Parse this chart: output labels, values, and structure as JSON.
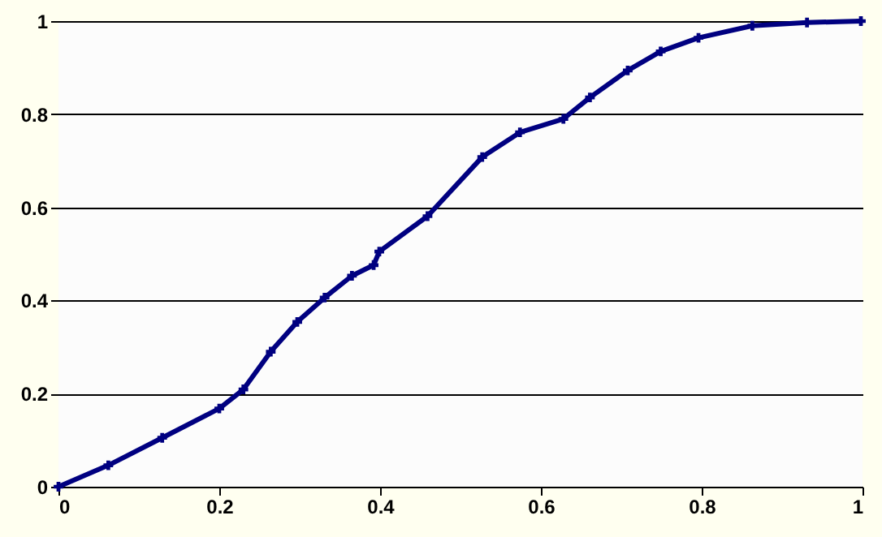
{
  "chart_data": {
    "type": "line",
    "marker": "cross",
    "line_style": "solid",
    "grid": "y",
    "x": [
      0,
      0.062,
      0.129,
      0.2,
      0.23,
      0.264,
      0.297,
      0.331,
      0.365,
      0.392,
      0.399,
      0.459,
      0.527,
      0.574,
      0.628,
      0.661,
      0.708,
      0.749,
      0.796,
      0.863,
      0.931,
      0.998
    ],
    "series": [
      {
        "color": "#000080",
        "values": [
          0,
          0.046,
          0.105,
          0.168,
          0.209,
          0.29,
          0.354,
          0.406,
          0.453,
          0.476,
          0.505,
          0.581,
          0.708,
          0.761,
          0.79,
          0.836,
          0.894,
          0.935,
          0.964,
          0.99,
          0.997,
          1.0
        ]
      }
    ],
    "xlim": [
      0,
      1
    ],
    "ylim": [
      0,
      1
    ],
    "xticks": [
      0,
      0.2,
      0.4,
      0.6,
      0.8,
      1
    ],
    "yticks": [
      0,
      0.2,
      0.4,
      0.6,
      0.8,
      1
    ]
  }
}
